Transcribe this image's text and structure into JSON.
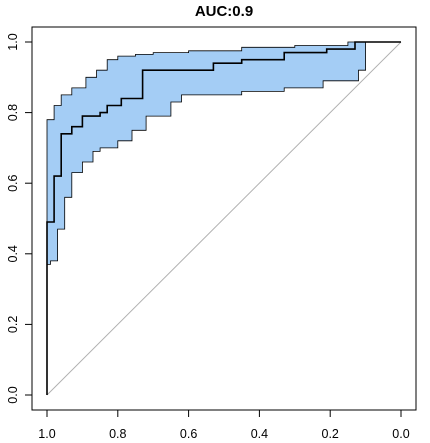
{
  "chart_data": {
    "type": "line",
    "title": "AUC:0.9",
    "xlabel": "",
    "ylabel": "",
    "xlim": [
      1.0,
      0.0
    ],
    "ylim": [
      0.0,
      1.0
    ],
    "x_reversed": true,
    "xticks": [
      1.0,
      0.8,
      0.6,
      0.4,
      0.2,
      0.0
    ],
    "xtick_labels": [
      "1.0",
      "0.8",
      "0.6",
      "0.4",
      "0.2",
      "0.0"
    ],
    "yticks": [
      0.0,
      0.2,
      0.4,
      0.6,
      0.8,
      1.0
    ],
    "ytick_labels": [
      "0.0",
      "0.2",
      "0.4",
      "0.6",
      "0.8",
      "1.0"
    ],
    "grid": false,
    "legend": "none",
    "colors": {
      "band_fill": "#a4cdf5",
      "band_stroke": "#000000",
      "curve": "#000000",
      "diagonal": "#b0b0b0"
    },
    "series": [
      {
        "role": "roc_curve",
        "x": [
          1.0,
          1.0,
          0.98,
          0.98,
          0.96,
          0.96,
          0.95,
          0.95,
          0.93,
          0.93,
          0.9,
          0.9,
          0.87,
          0.87,
          0.85,
          0.85,
          0.83,
          0.83,
          0.79,
          0.79,
          0.78,
          0.78,
          0.73,
          0.73,
          0.53,
          0.53,
          0.45,
          0.45,
          0.33,
          0.33,
          0.21,
          0.21,
          0.13,
          0.13,
          0.0
        ],
        "y": [
          0.0,
          0.49,
          0.49,
          0.62,
          0.62,
          0.74,
          0.74,
          0.74,
          0.74,
          0.76,
          0.76,
          0.79,
          0.79,
          0.79,
          0.79,
          0.8,
          0.8,
          0.82,
          0.82,
          0.84,
          0.84,
          0.84,
          0.84,
          0.92,
          0.92,
          0.94,
          0.94,
          0.95,
          0.95,
          0.97,
          0.97,
          0.98,
          0.98,
          1.0,
          1.0
        ]
      },
      {
        "role": "confidence_band_upper",
        "x": [
          1.0,
          1.0,
          0.98,
          0.98,
          0.96,
          0.96,
          0.93,
          0.93,
          0.89,
          0.89,
          0.86,
          0.86,
          0.83,
          0.83,
          0.8,
          0.8,
          0.75,
          0.75,
          0.7,
          0.7,
          0.6,
          0.6,
          0.45,
          0.45,
          0.3,
          0.3,
          0.15,
          0.15,
          0.0
        ],
        "y": [
          0.6,
          0.78,
          0.78,
          0.82,
          0.82,
          0.85,
          0.85,
          0.87,
          0.87,
          0.9,
          0.9,
          0.92,
          0.92,
          0.95,
          0.95,
          0.96,
          0.96,
          0.965,
          0.965,
          0.97,
          0.97,
          0.975,
          0.975,
          0.985,
          0.985,
          0.99,
          0.99,
          1.0,
          1.0
        ]
      },
      {
        "role": "confidence_band_lower",
        "x": [
          1.0,
          0.99,
          0.99,
          0.97,
          0.97,
          0.95,
          0.95,
          0.93,
          0.93,
          0.9,
          0.9,
          0.87,
          0.87,
          0.85,
          0.85,
          0.8,
          0.8,
          0.76,
          0.76,
          0.72,
          0.72,
          0.65,
          0.65,
          0.62,
          0.62,
          0.45,
          0.45,
          0.33,
          0.33,
          0.22,
          0.22,
          0.12,
          0.12,
          0.1,
          0.1,
          0.0
        ],
        "y": [
          0.37,
          0.37,
          0.38,
          0.38,
          0.47,
          0.47,
          0.56,
          0.56,
          0.63,
          0.63,
          0.66,
          0.66,
          0.69,
          0.69,
          0.7,
          0.7,
          0.72,
          0.72,
          0.75,
          0.75,
          0.79,
          0.79,
          0.83,
          0.83,
          0.85,
          0.85,
          0.86,
          0.86,
          0.87,
          0.87,
          0.89,
          0.89,
          0.92,
          0.92,
          1.0,
          1.0
        ]
      },
      {
        "role": "reference_diagonal",
        "x": [
          1.0,
          0.0
        ],
        "y": [
          0.0,
          1.0
        ]
      }
    ]
  }
}
